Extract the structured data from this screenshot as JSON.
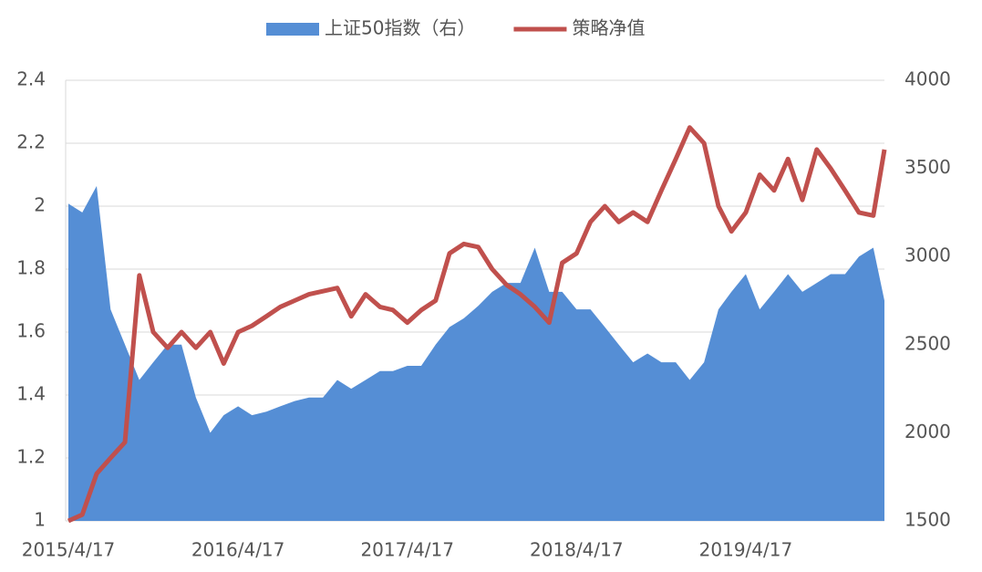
{
  "chart_data": {
    "type": "line",
    "x": [
      "2015/4/17",
      "2015/5/17",
      "2015/6/17",
      "2015/7/17",
      "2015/8/17",
      "2015/9/17",
      "2015/10/17",
      "2015/11/17",
      "2015/12/17",
      "2016/1/17",
      "2016/2/17",
      "2016/3/17",
      "2016/4/17",
      "2016/5/17",
      "2016/6/17",
      "2016/7/17",
      "2016/8/17",
      "2016/9/17",
      "2016/10/17",
      "2016/11/17",
      "2016/12/17",
      "2017/1/17",
      "2017/2/17",
      "2017/3/17",
      "2017/4/17",
      "2017/5/17",
      "2017/6/17",
      "2017/7/17",
      "2017/8/17",
      "2017/9/17",
      "2017/10/17",
      "2017/11/17",
      "2017/12/17",
      "2018/1/17",
      "2018/2/17",
      "2018/3/17",
      "2018/4/17",
      "2018/5/17",
      "2018/6/17",
      "2018/7/17",
      "2018/8/17",
      "2018/9/17",
      "2018/10/17",
      "2018/11/17",
      "2018/12/17",
      "2019/1/17",
      "2019/2/17",
      "2019/3/17",
      "2019/4/17",
      "2019/5/17",
      "2019/6/17",
      "2019/7/17",
      "2019/8/17",
      "2019/9/17",
      "2019/10/17",
      "2019/11/17",
      "2019/12/17",
      "2020/1/17",
      "2020/2/10"
    ],
    "series": [
      {
        "name": "上证50指数（右）",
        "type": "area",
        "axis": "y2",
        "color": "#558ed5",
        "values": [
          3300,
          3250,
          3400,
          2700,
          2500,
          2300,
          2400,
          2500,
          2500,
          2200,
          2000,
          2100,
          2150,
          2100,
          2120,
          2150,
          2180,
          2200,
          2200,
          2300,
          2250,
          2300,
          2350,
          2350,
          2380,
          2380,
          2500,
          2600,
          2650,
          2720,
          2800,
          2850,
          2850,
          3050,
          2800,
          2800,
          2700,
          2700,
          2600,
          2500,
          2400,
          2450,
          2400,
          2400,
          2300,
          2400,
          2700,
          2800,
          2900,
          2700,
          2800,
          2900,
          2800,
          2850,
          2900,
          2900,
          3000,
          3050,
          2750
        ]
      },
      {
        "name": "策略净值",
        "type": "line",
        "axis": "y",
        "color": "#c0504d",
        "values": [
          1.0,
          1.02,
          1.15,
          1.2,
          1.25,
          1.78,
          1.6,
          1.55,
          1.6,
          1.55,
          1.6,
          1.5,
          1.6,
          1.62,
          1.65,
          1.68,
          1.7,
          1.72,
          1.73,
          1.74,
          1.65,
          1.72,
          1.68,
          1.67,
          1.63,
          1.67,
          1.7,
          1.85,
          1.88,
          1.87,
          1.8,
          1.75,
          1.72,
          1.68,
          1.63,
          1.82,
          1.85,
          1.95,
          2.0,
          1.95,
          1.98,
          1.95,
          2.05,
          2.15,
          2.25,
          2.2,
          2.0,
          1.92,
          1.98,
          2.1,
          2.05,
          2.15,
          2.02,
          2.18,
          2.12,
          2.05,
          1.98,
          1.97,
          2.18
        ]
      }
    ],
    "xlim": [
      "2015/4/17",
      "2020/2/10"
    ],
    "xticks": [
      "2015/4/17",
      "2016/4/17",
      "2017/4/17",
      "2018/4/17",
      "2019/4/17"
    ],
    "ylim": [
      1,
      2.4
    ],
    "yticks": [
      1,
      1.2,
      1.4,
      1.6,
      1.8,
      2,
      2.2,
      2.4
    ],
    "y2lim": [
      1500,
      4000
    ],
    "y2ticks": [
      1500,
      2000,
      2500,
      3000,
      3500,
      4000
    ],
    "grid": true,
    "legend": "top"
  }
}
